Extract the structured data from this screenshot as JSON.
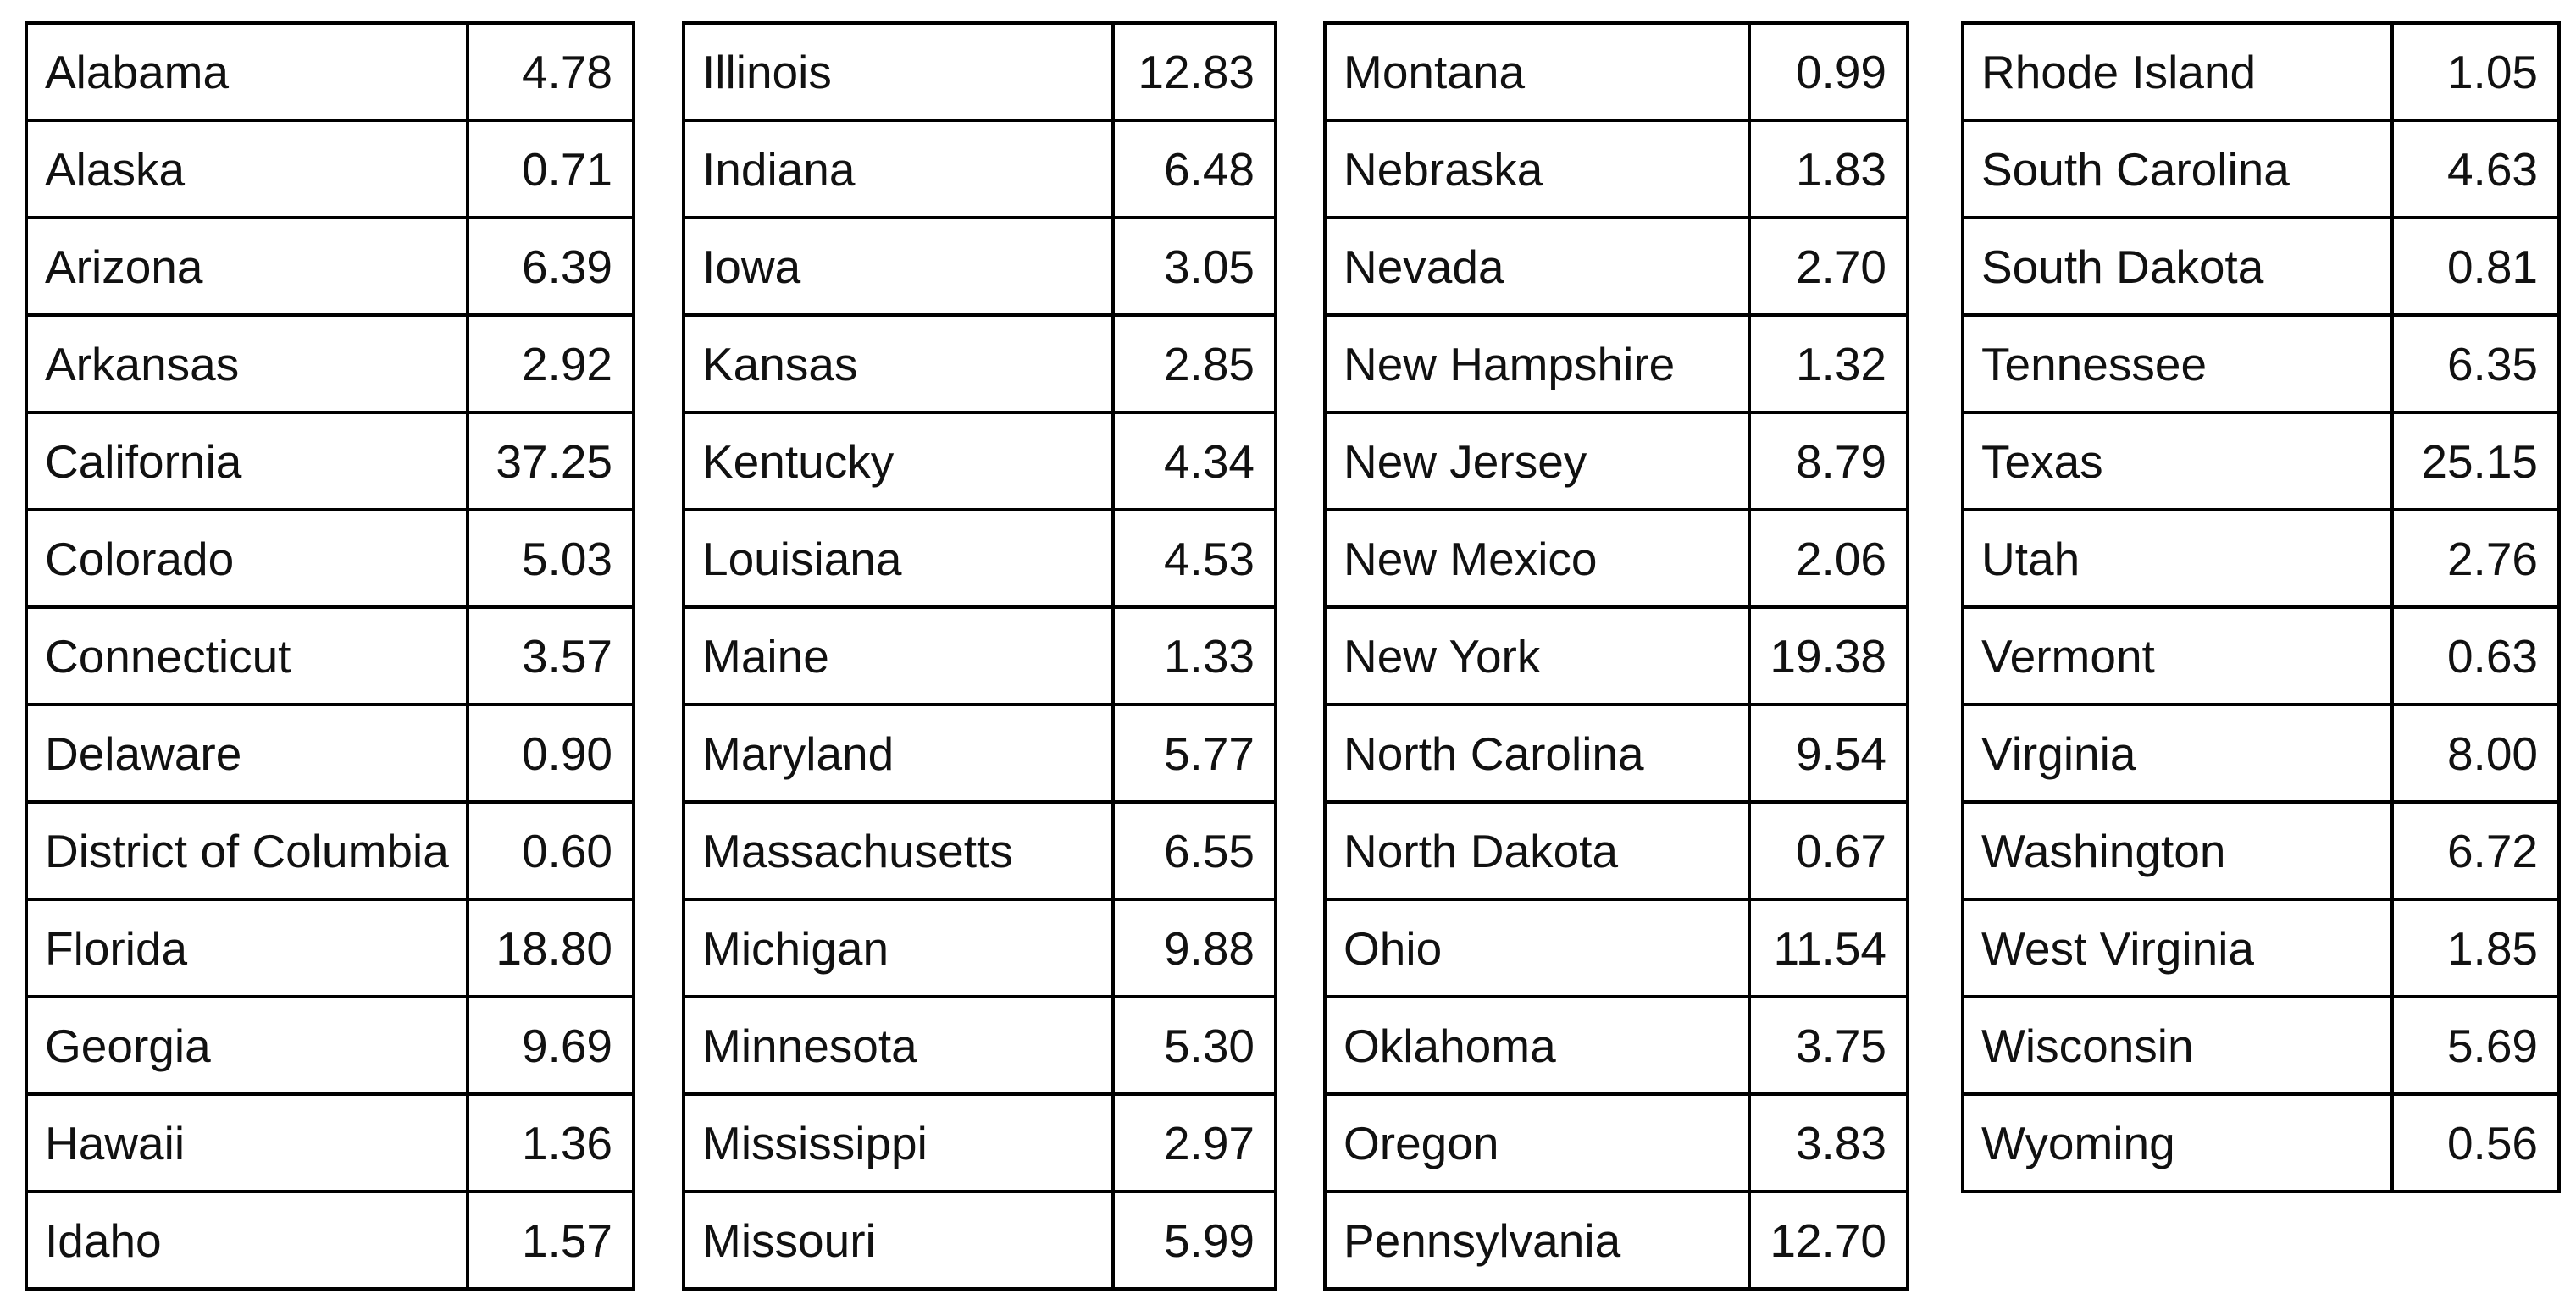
{
  "page": {
    "background": "#ffffff",
    "text_color": "#111111",
    "border_color": "#000000"
  },
  "tables": [
    {
      "rows": [
        {
          "state": "Alabama",
          "value": "4.78"
        },
        {
          "state": "Alaska",
          "value": "0.71"
        },
        {
          "state": "Arizona",
          "value": "6.39"
        },
        {
          "state": "Arkansas",
          "value": "2.92"
        },
        {
          "state": "California",
          "value": "37.25"
        },
        {
          "state": "Colorado",
          "value": "5.03"
        },
        {
          "state": "Connecticut",
          "value": "3.57"
        },
        {
          "state": "Delaware",
          "value": "0.90"
        },
        {
          "state": "District of Columbia",
          "value": "0.60"
        },
        {
          "state": "Florida",
          "value": "18.80"
        },
        {
          "state": "Georgia",
          "value": "9.69"
        },
        {
          "state": "Hawaii",
          "value": "1.36"
        },
        {
          "state": "Idaho",
          "value": "1.57"
        }
      ]
    },
    {
      "rows": [
        {
          "state": "Illinois",
          "value": "12.83"
        },
        {
          "state": "Indiana",
          "value": "6.48"
        },
        {
          "state": "Iowa",
          "value": "3.05"
        },
        {
          "state": "Kansas",
          "value": "2.85"
        },
        {
          "state": "Kentucky",
          "value": "4.34"
        },
        {
          "state": "Louisiana",
          "value": "4.53"
        },
        {
          "state": "Maine",
          "value": "1.33"
        },
        {
          "state": "Maryland",
          "value": "5.77"
        },
        {
          "state": "Massachusetts",
          "value": "6.55"
        },
        {
          "state": "Michigan",
          "value": "9.88"
        },
        {
          "state": "Minnesota",
          "value": "5.30"
        },
        {
          "state": "Mississippi",
          "value": "2.97"
        },
        {
          "state": "Missouri",
          "value": "5.99"
        }
      ]
    },
    {
      "rows": [
        {
          "state": "Montana",
          "value": "0.99"
        },
        {
          "state": "Nebraska",
          "value": "1.83"
        },
        {
          "state": "Nevada",
          "value": "2.70"
        },
        {
          "state": "New Hampshire",
          "value": "1.32"
        },
        {
          "state": "New Jersey",
          "value": "8.79"
        },
        {
          "state": "New Mexico",
          "value": "2.06"
        },
        {
          "state": "New York",
          "value": "19.38"
        },
        {
          "state": "North Carolina",
          "value": "9.54"
        },
        {
          "state": "North Dakota",
          "value": "0.67"
        },
        {
          "state": "Ohio",
          "value": "11.54"
        },
        {
          "state": "Oklahoma",
          "value": "3.75"
        },
        {
          "state": "Oregon",
          "value": "3.83"
        },
        {
          "state": "Pennsylvania",
          "value": "12.70"
        }
      ]
    },
    {
      "rows": [
        {
          "state": "Rhode Island",
          "value": "1.05"
        },
        {
          "state": "South Carolina",
          "value": "4.63"
        },
        {
          "state": "South Dakota",
          "value": "0.81"
        },
        {
          "state": "Tennessee",
          "value": "6.35"
        },
        {
          "state": "Texas",
          "value": "25.15"
        },
        {
          "state": "Utah",
          "value": "2.76"
        },
        {
          "state": "Vermont",
          "value": "0.63"
        },
        {
          "state": "Virginia",
          "value": "8.00"
        },
        {
          "state": "Washington",
          "value": "6.72"
        },
        {
          "state": "West Virginia",
          "value": "1.85"
        },
        {
          "state": "Wisconsin",
          "value": "5.69"
        },
        {
          "state": "Wyoming",
          "value": "0.56"
        }
      ]
    }
  ],
  "chart_data": {
    "type": "table",
    "columns": [
      "state",
      "value"
    ],
    "layout": "four side-by-side two-column tables, no header row, values right-aligned",
    "rows": [
      [
        "Alabama",
        4.78
      ],
      [
        "Alaska",
        0.71
      ],
      [
        "Arizona",
        6.39
      ],
      [
        "Arkansas",
        2.92
      ],
      [
        "California",
        37.25
      ],
      [
        "Colorado",
        5.03
      ],
      [
        "Connecticut",
        3.57
      ],
      [
        "Delaware",
        0.9
      ],
      [
        "District of Columbia",
        0.6
      ],
      [
        "Florida",
        18.8
      ],
      [
        "Georgia",
        9.69
      ],
      [
        "Hawaii",
        1.36
      ],
      [
        "Idaho",
        1.57
      ],
      [
        "Illinois",
        12.83
      ],
      [
        "Indiana",
        6.48
      ],
      [
        "Iowa",
        3.05
      ],
      [
        "Kansas",
        2.85
      ],
      [
        "Kentucky",
        4.34
      ],
      [
        "Louisiana",
        4.53
      ],
      [
        "Maine",
        1.33
      ],
      [
        "Maryland",
        5.77
      ],
      [
        "Massachusetts",
        6.55
      ],
      [
        "Michigan",
        9.88
      ],
      [
        "Minnesota",
        5.3
      ],
      [
        "Mississippi",
        2.97
      ],
      [
        "Missouri",
        5.99
      ],
      [
        "Montana",
        0.99
      ],
      [
        "Nebraska",
        1.83
      ],
      [
        "Nevada",
        2.7
      ],
      [
        "New Hampshire",
        1.32
      ],
      [
        "New Jersey",
        8.79
      ],
      [
        "New Mexico",
        2.06
      ],
      [
        "New York",
        19.38
      ],
      [
        "North Carolina",
        9.54
      ],
      [
        "North Dakota",
        0.67
      ],
      [
        "Ohio",
        11.54
      ],
      [
        "Oklahoma",
        3.75
      ],
      [
        "Oregon",
        3.83
      ],
      [
        "Pennsylvania",
        12.7
      ],
      [
        "Rhode Island",
        1.05
      ],
      [
        "South Carolina",
        4.63
      ],
      [
        "South Dakota",
        0.81
      ],
      [
        "Tennessee",
        6.35
      ],
      [
        "Texas",
        25.15
      ],
      [
        "Utah",
        2.76
      ],
      [
        "Vermont",
        0.63
      ],
      [
        "Virginia",
        8.0
      ],
      [
        "Washington",
        6.72
      ],
      [
        "West Virginia",
        1.85
      ],
      [
        "Wisconsin",
        5.69
      ],
      [
        "Wyoming",
        0.56
      ]
    ]
  }
}
